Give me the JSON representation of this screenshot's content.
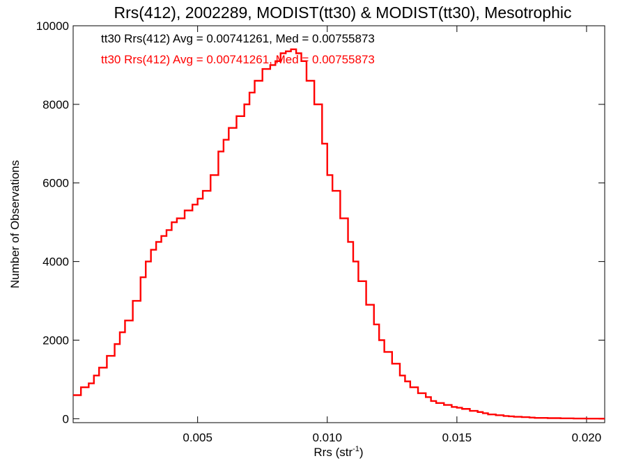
{
  "chart_data": {
    "type": "line",
    "title": "Rrs(412), 2002289, MODIST(tt30) & MODIST(tt30), Mesotrophic",
    "xlabel": "Rrs (str",
    "xlabel_sup": "-1",
    "xlabel_close": ")",
    "ylabel": "Number of Observations",
    "xlim": [
      0.0002,
      0.0207
    ],
    "ylim": [
      -100,
      10000
    ],
    "x_ticks": [
      0.005,
      0.01,
      0.015,
      0.02
    ],
    "x_tick_labels": [
      "0.005",
      "0.010",
      "0.015",
      "0.020"
    ],
    "y_ticks": [
      0,
      2000,
      4000,
      6000,
      8000,
      10000
    ],
    "y_tick_labels": [
      "0",
      "2000",
      "4000",
      "6000",
      "8000",
      "10000"
    ],
    "grid": false,
    "legend": "top-left",
    "annotations": [
      {
        "text": "tt30 Rrs(412) Avg = 0.00741261, Med = 0.00755873",
        "color": "#000000"
      },
      {
        "text": "tt30 Rrs(412) Avg = 0.00741261, Med = 0.00755873",
        "color": "#ff0000"
      }
    ],
    "series": [
      {
        "color": "#ff0000",
        "style": "step",
        "x": [
          0.0002,
          0.0005,
          0.0008,
          0.001,
          0.0012,
          0.0015,
          0.0018,
          0.002,
          0.0022,
          0.0025,
          0.0028,
          0.003,
          0.0032,
          0.0034,
          0.0036,
          0.0038,
          0.004,
          0.0042,
          0.0045,
          0.0048,
          0.005,
          0.0052,
          0.0055,
          0.0058,
          0.006,
          0.0062,
          0.0065,
          0.0068,
          0.007,
          0.0072,
          0.0075,
          0.0078,
          0.008,
          0.0082,
          0.0084,
          0.0086,
          0.0088,
          0.009,
          0.0092,
          0.0095,
          0.0098,
          0.01,
          0.0102,
          0.0105,
          0.0108,
          0.011,
          0.0112,
          0.0115,
          0.0118,
          0.012,
          0.0122,
          0.0125,
          0.0128,
          0.013,
          0.0132,
          0.0135,
          0.0138,
          0.014,
          0.0142,
          0.0145,
          0.0148,
          0.015,
          0.0152,
          0.0155,
          0.0158,
          0.016,
          0.0162,
          0.0165,
          0.0168,
          0.017,
          0.0172,
          0.0175,
          0.0178,
          0.018,
          0.0185,
          0.019,
          0.0195,
          0.02,
          0.0205
        ],
        "y": [
          600,
          800,
          900,
          1100,
          1300,
          1600,
          1900,
          2200,
          2500,
          3000,
          3600,
          4000,
          4300,
          4500,
          4650,
          4800,
          5000,
          5100,
          5300,
          5450,
          5600,
          5800,
          6200,
          6800,
          7100,
          7400,
          7700,
          8000,
          8300,
          8600,
          8900,
          9000,
          9100,
          9300,
          9350,
          9400,
          9300,
          9100,
          8600,
          8000,
          7000,
          6200,
          5800,
          5100,
          4500,
          4000,
          3500,
          2900,
          2400,
          2000,
          1700,
          1400,
          1100,
          950,
          800,
          650,
          550,
          450,
          400,
          350,
          300,
          280,
          250,
          200,
          170,
          140,
          110,
          90,
          70,
          60,
          50,
          40,
          30,
          20,
          15,
          10,
          5,
          3,
          2
        ]
      }
    ]
  }
}
